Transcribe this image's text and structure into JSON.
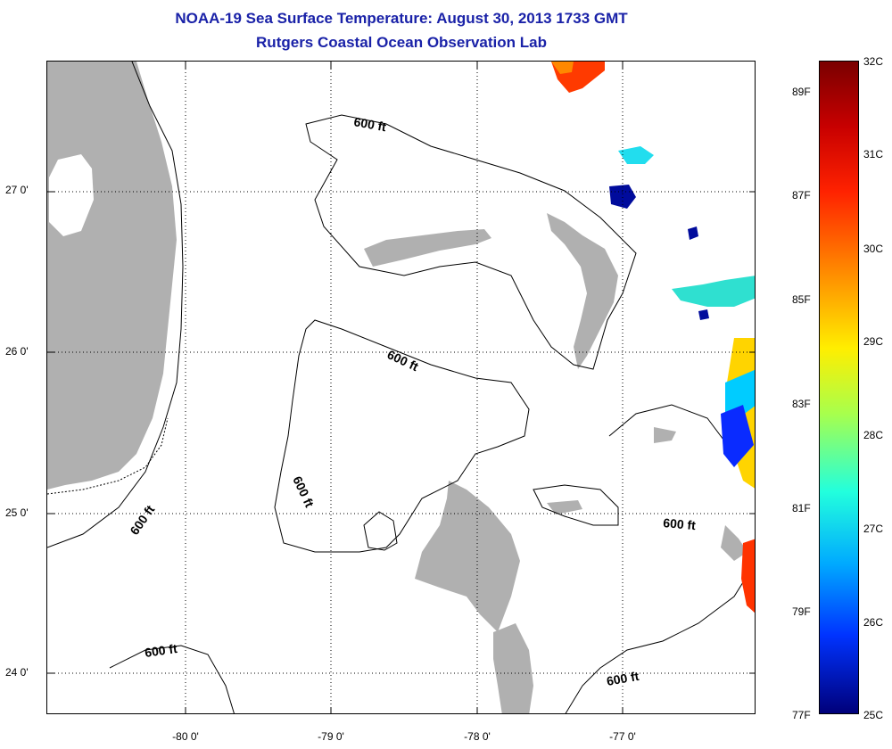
{
  "title": {
    "line1": "NOAA-19 Sea Surface Temperature:  August 30, 2013 1733 GMT",
    "line2": "Rutgers Coastal Ocean Observation Lab"
  },
  "axes": {
    "lat_labels": [
      "27 0'",
      "26 0'",
      "25 0'",
      "24 0'"
    ],
    "lon_labels": [
      "-80 0'",
      "-79 0'",
      "-78 0'",
      "-77 0'"
    ]
  },
  "contours": {
    "label": "600 ft"
  },
  "colorbar": {
    "celsius": [
      "32C",
      "31C",
      "30C",
      "29C",
      "28C",
      "27C",
      "26C",
      "25C"
    ],
    "fahrenheit": [
      "89F",
      "87F",
      "85F",
      "83F",
      "81F",
      "79F",
      "77F"
    ],
    "range_c": [
      25,
      32
    ],
    "range_f": [
      77,
      89
    ]
  },
  "colors": {
    "title": "#1a22a8",
    "land": "#b0b0b0",
    "grid": "#000000"
  }
}
